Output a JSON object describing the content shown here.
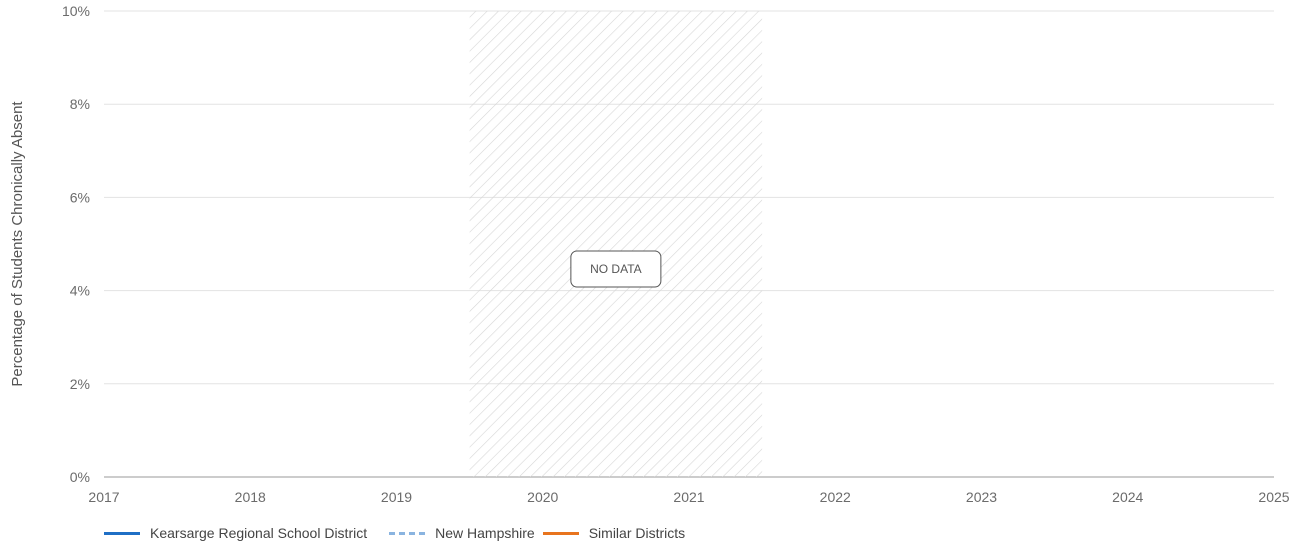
{
  "chart_data": {
    "type": "line",
    "title": "",
    "xlabel": "",
    "ylabel": "Percentage of Students Chronically Absent",
    "x_ticks": [
      "2017",
      "2018",
      "2019",
      "2020",
      "2021",
      "2022",
      "2023",
      "2024",
      "2025"
    ],
    "y_ticks": [
      "0%",
      "2%",
      "4%",
      "6%",
      "8%",
      "10%"
    ],
    "xlim": [
      2017,
      2025
    ],
    "ylim": [
      0,
      10
    ],
    "grid": true,
    "series": [
      {
        "name": "Kearsarge Regional School District",
        "values": [],
        "color": "#1f6fc5",
        "style": "solid"
      },
      {
        "name": "New Hampshire",
        "values": [],
        "color": "#8ab4e0",
        "style": "dashed"
      },
      {
        "name": "Similar Districts",
        "values": [],
        "color": "#e8741e",
        "style": "solid"
      }
    ],
    "no_data_region": {
      "from": 2019.5,
      "to": 2021.5,
      "label": "NO DATA"
    },
    "legend_position": "bottom-left"
  }
}
